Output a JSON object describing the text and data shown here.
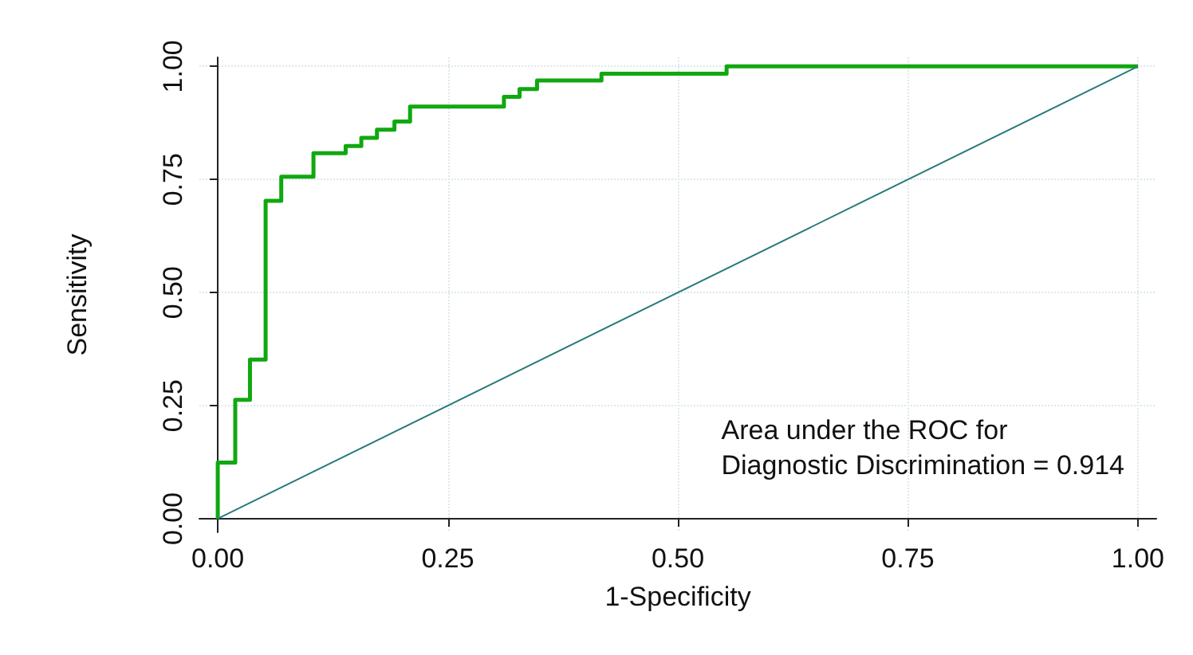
{
  "chart_data": {
    "type": "step",
    "xlabel": "1-Specificity",
    "ylabel": "Sensitivity",
    "annotations": [
      "Area under the ROC for\nDiagnostic Discrimination = 0.914"
    ],
    "xlim": [
      -0.02,
      1.02
    ],
    "ylim": [
      -0.03,
      1.02
    ],
    "xticks": [
      {
        "value": 0,
        "label": "0.00"
      },
      {
        "value": 0.25,
        "label": "0.25"
      },
      {
        "value": 0.5,
        "label": "0.50"
      },
      {
        "value": 0.75,
        "label": "0.75"
      },
      {
        "value": 1,
        "label": "1.00"
      }
    ],
    "yticks": [
      {
        "value": 0,
        "label": "0.00"
      },
      {
        "value": 0.25,
        "label": "0.25"
      },
      {
        "value": 0.5,
        "label": "0.50"
      },
      {
        "value": 0.75,
        "label": "0.75"
      },
      {
        "value": 1,
        "label": "1.00"
      }
    ],
    "grid": true,
    "marker": "none",
    "series": [
      {
        "color": "#10a810",
        "x": [
          0,
          0,
          0.019,
          0.035,
          0.052,
          0.069,
          0.104,
          0.139,
          0.156,
          0.173,
          0.192,
          0.209,
          0.311,
          0.328,
          0.347,
          0.417,
          0.553,
          1
        ],
        "values": [
          0,
          0.124,
          0.263,
          0.352,
          0.703,
          0.756,
          0.808,
          0.824,
          0.842,
          0.86,
          0.878,
          0.911,
          0.933,
          0.95,
          0.969,
          0.984,
          1,
          1
        ]
      },
      {
        "type": "line",
        "color": "#2a7a7a",
        "x": [
          0,
          1
        ],
        "values": [
          0,
          1
        ]
      }
    ]
  }
}
